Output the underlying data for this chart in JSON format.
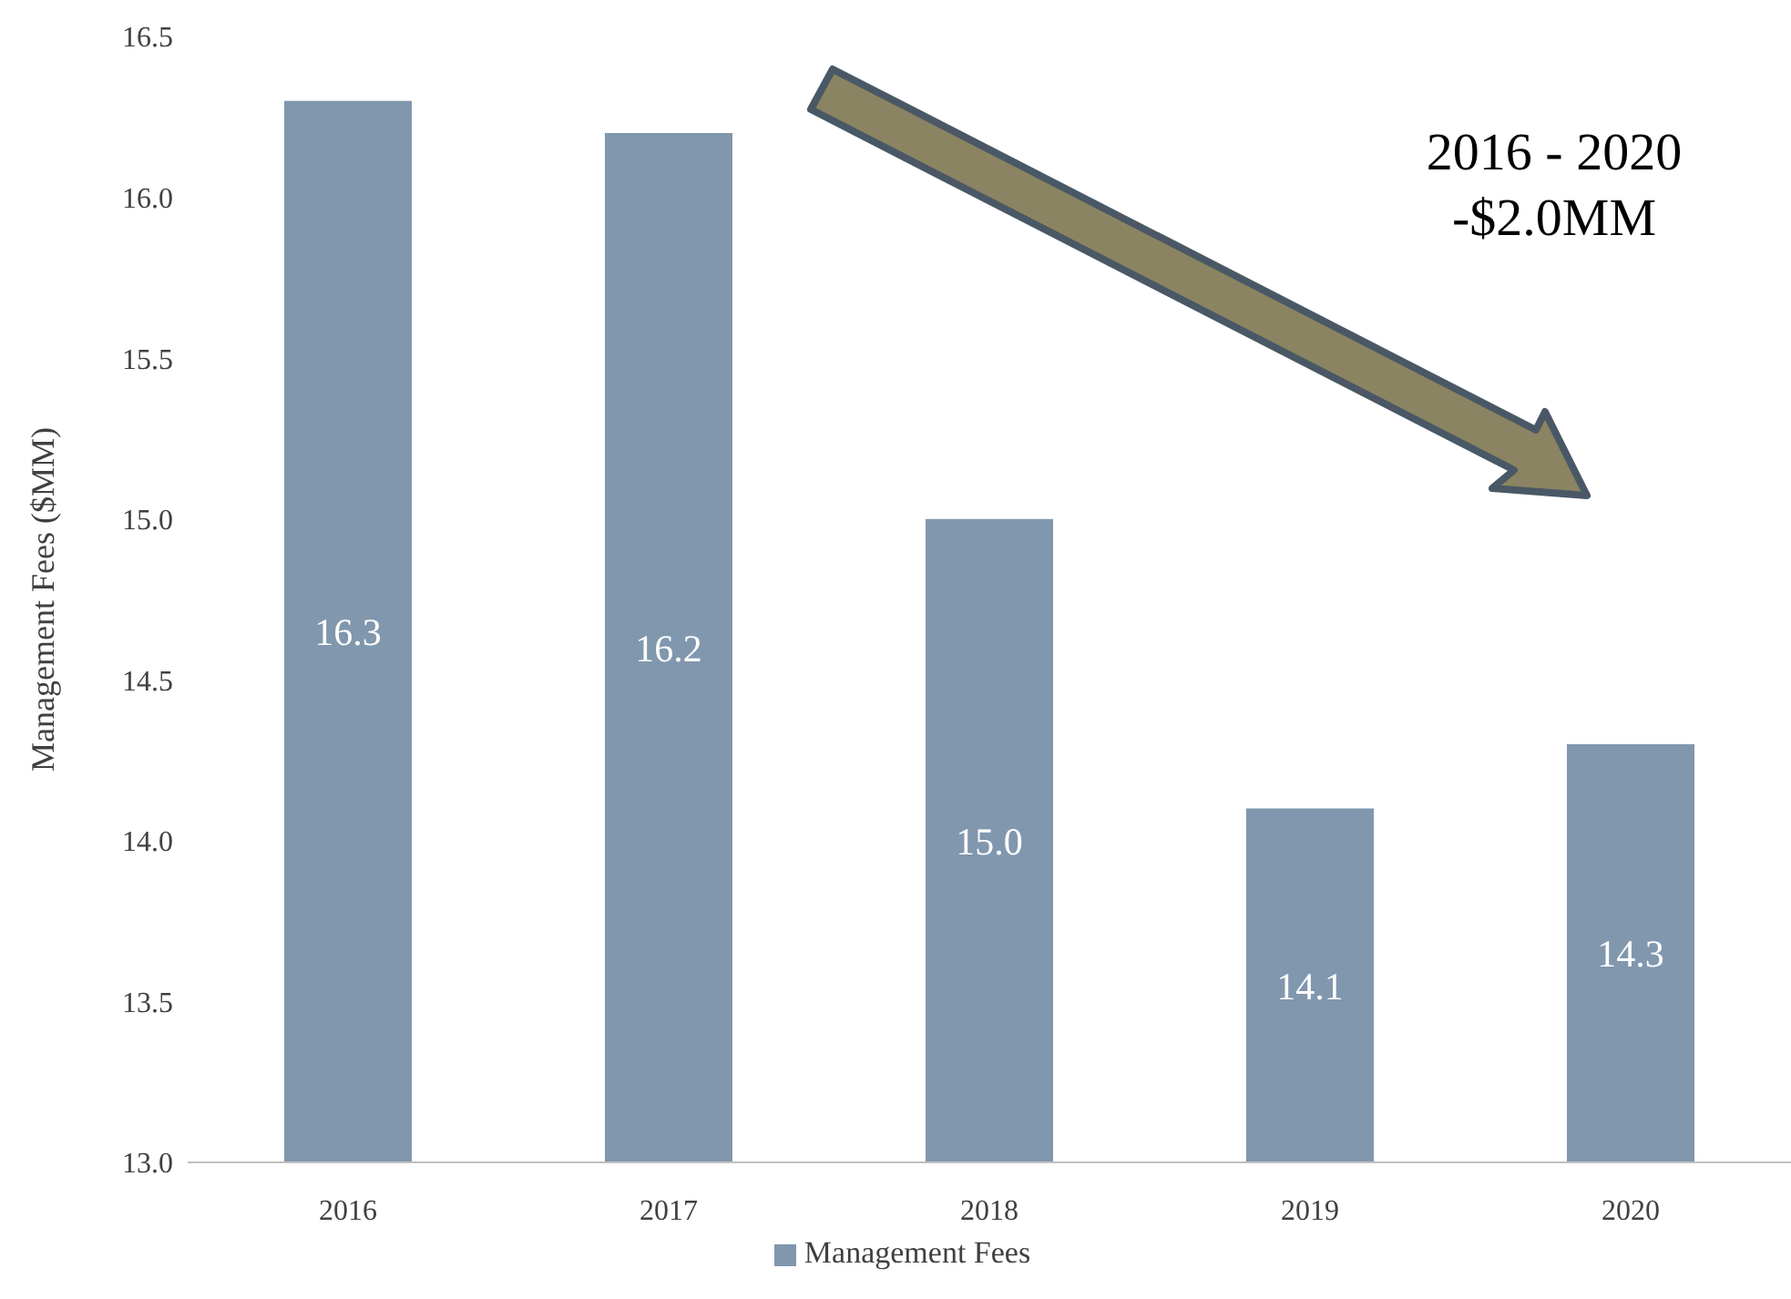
{
  "chart_data": {
    "type": "bar",
    "ylabel": "Management Fees ($MM)",
    "categories": [
      "2016",
      "2017",
      "2018",
      "2019",
      "2020"
    ],
    "series": [
      {
        "name": "Management Fees",
        "color": "#8097ae",
        "values": [
          16.3,
          16.2,
          15.0,
          14.1,
          14.3
        ],
        "value_labels": [
          "16.3",
          "16.2",
          "15.0",
          "14.1",
          "14.3"
        ]
      }
    ],
    "ylim": [
      13,
      16.5
    ],
    "yticks": [
      {
        "value": 13,
        "label": "13.0"
      },
      {
        "value": 13.5,
        "label": "13.5"
      },
      {
        "value": 14,
        "label": "14.0"
      },
      {
        "value": 14.5,
        "label": "14.5"
      },
      {
        "value": 15,
        "label": "15.0"
      },
      {
        "value": 15.5,
        "label": "15.5"
      },
      {
        "value": 16,
        "label": "16.0"
      },
      {
        "value": 16.5,
        "label": "16.5"
      }
    ],
    "grid": false,
    "legend": "bottom",
    "annotations": [
      "2016 - 2020",
      "-$2.0MM"
    ]
  }
}
